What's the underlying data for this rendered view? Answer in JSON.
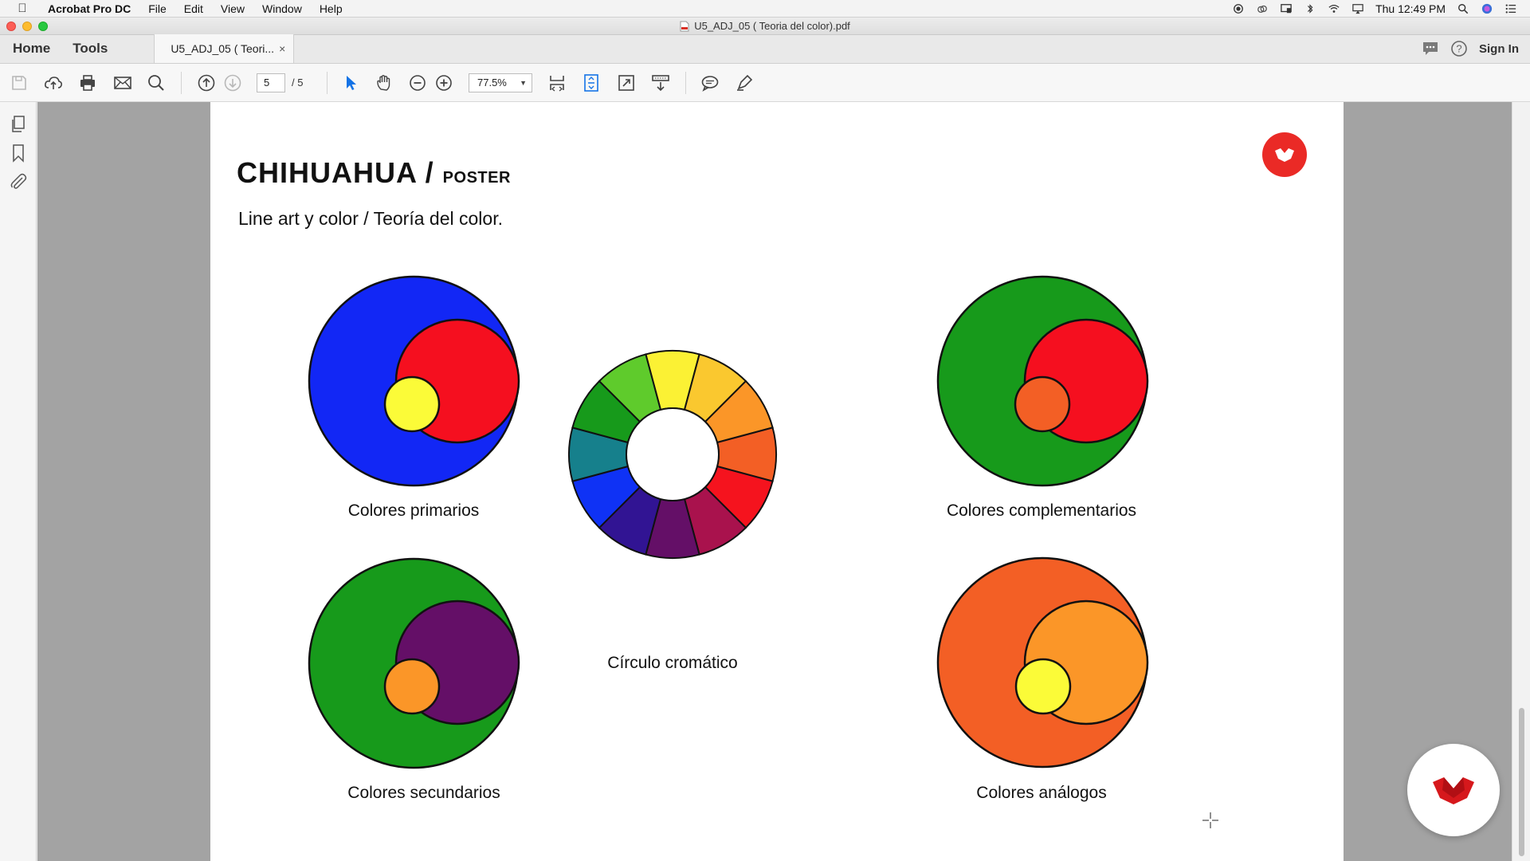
{
  "menubar": {
    "app_name": "Acrobat Pro DC",
    "items": [
      "File",
      "Edit",
      "View",
      "Window",
      "Help"
    ],
    "clock": "Thu 12:49 PM"
  },
  "window": {
    "title": "U5_ADJ_05 ( Teoria del color).pdf"
  },
  "tabs": {
    "home": "Home",
    "tools": "Tools",
    "document_tab": "U5_ADJ_05 ( Teori...",
    "close_glyph": "×",
    "sign_in": "Sign In"
  },
  "toolbar": {
    "current_page": "5",
    "total_pages": "/ 5",
    "zoom": "77.5%"
  },
  "document": {
    "title_main": "CHIHUAHUA /",
    "title_small": "POSTER",
    "subtitle": "Line art y color / Teoría del color.",
    "captions": {
      "primarios": "Colores primarios",
      "secundarios": "Colores secundarios",
      "cromatico": "Círculo cromático",
      "complementarios": "Colores complementarios",
      "analogos": "Colores análogos"
    },
    "colors": {
      "blue": "#1227f5",
      "red": "#f50f1f",
      "yellow": "#fbfb38",
      "green": "#179a1b",
      "purple": "#640f67",
      "orange": "#fb9628",
      "red_orange": "#f35f25",
      "brand_red": "#ea2a26"
    },
    "wheel_segments": [
      "#fbf134",
      "#fac82f",
      "#fb9628",
      "#f35f25",
      "#f5131e",
      "#a9124d",
      "#640f67",
      "#311493",
      "#0f32f5",
      "#16808c",
      "#179a1b",
      "#5fcb2c"
    ]
  }
}
